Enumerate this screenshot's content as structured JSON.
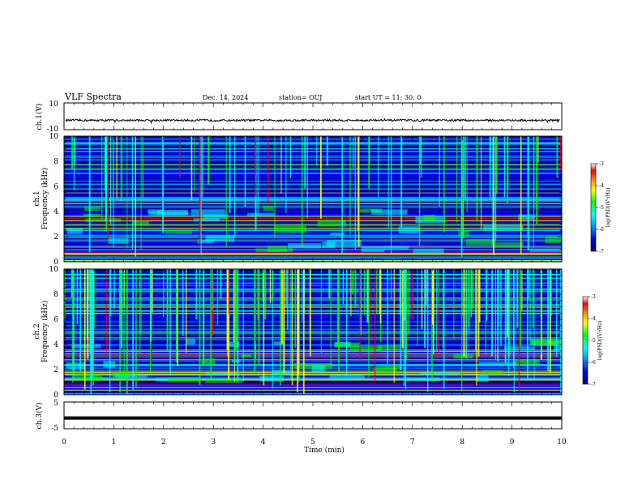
{
  "header": {
    "title": "VLF Spectra",
    "date": "Dec. 14, 2024",
    "station": "station= OUJ",
    "start": "start  UT  =   11: 30: 0"
  },
  "colors": {
    "colormap": [
      "#000080",
      "#0000ff",
      "#00a0ff",
      "#00ffff",
      "#00ff00",
      "#ffff00",
      "#ff8000",
      "#ff0000",
      "#ffffff"
    ],
    "trace": "#000000",
    "frame": "#000000"
  },
  "chart_data": [
    {
      "type": "line",
      "ylabel": "ch.1(V)",
      "ylim": [
        -10,
        10
      ],
      "ytick_labels": [
        "10",
        "-10"
      ],
      "xlim": [
        0,
        10
      ],
      "description_level": -3
    },
    {
      "type": "heatmap",
      "ylabel": "ch.1\nFrequency (kHz)",
      "ylabel_line1": "ch.1",
      "ylabel_line2": "Frequency  (kHz)",
      "xlim": [
        0,
        10
      ],
      "ylim": [
        0,
        10
      ],
      "ytick_labels": [
        "0",
        "2",
        "4",
        "6",
        "8",
        "10"
      ],
      "colorbar": {
        "label": "log(PSD)(V²/Hz)",
        "range": [
          -7,
          -3
        ],
        "ticks": [
          "-3",
          "-4",
          "-5",
          "-6",
          "-7"
        ]
      }
    },
    {
      "type": "heatmap",
      "ylabel_line1": "ch.2",
      "ylabel_line2": "Frequency  (kHz)",
      "xlim": [
        0,
        10
      ],
      "ylim": [
        0,
        10
      ],
      "ytick_labels": [
        "0",
        "2",
        "4",
        "6",
        "8",
        "10"
      ],
      "colorbar": {
        "label": "log(PSD)(V²/Hz)",
        "range": [
          -7,
          -3
        ],
        "ticks": [
          "-3",
          "-4",
          "-5",
          "-6",
          "-7"
        ]
      }
    },
    {
      "type": "line",
      "ylabel": "ch.3(V)",
      "ylim": [
        -5,
        5
      ],
      "ytick_labels": [
        "5",
        "-5"
      ],
      "xlim": [
        0,
        10
      ],
      "level": -1
    }
  ],
  "xaxis": {
    "label": "Time  (min)",
    "tick_labels": [
      "0",
      "1",
      "2",
      "3",
      "4",
      "5",
      "6",
      "7",
      "8",
      "9",
      "10"
    ]
  }
}
